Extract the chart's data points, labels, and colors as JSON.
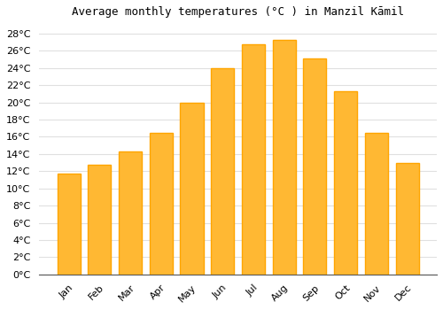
{
  "title": "Average monthly temperatures (°C ) in Manzil Kāmil",
  "months": [
    "Jan",
    "Feb",
    "Mar",
    "Apr",
    "May",
    "Jun",
    "Jul",
    "Aug",
    "Sep",
    "Oct",
    "Nov",
    "Dec"
  ],
  "values": [
    11.7,
    12.8,
    14.3,
    16.5,
    20.0,
    24.0,
    26.7,
    27.3,
    25.1,
    21.3,
    16.5,
    13.0
  ],
  "bar_color": "#FFA500",
  "bar_color_inner": "#FFB833",
  "background_color": "#FFFFFF",
  "grid_color": "#E0E0E0",
  "ylim": [
    0,
    29
  ],
  "ytick_step": 2,
  "title_fontsize": 9,
  "tick_fontsize": 8
}
